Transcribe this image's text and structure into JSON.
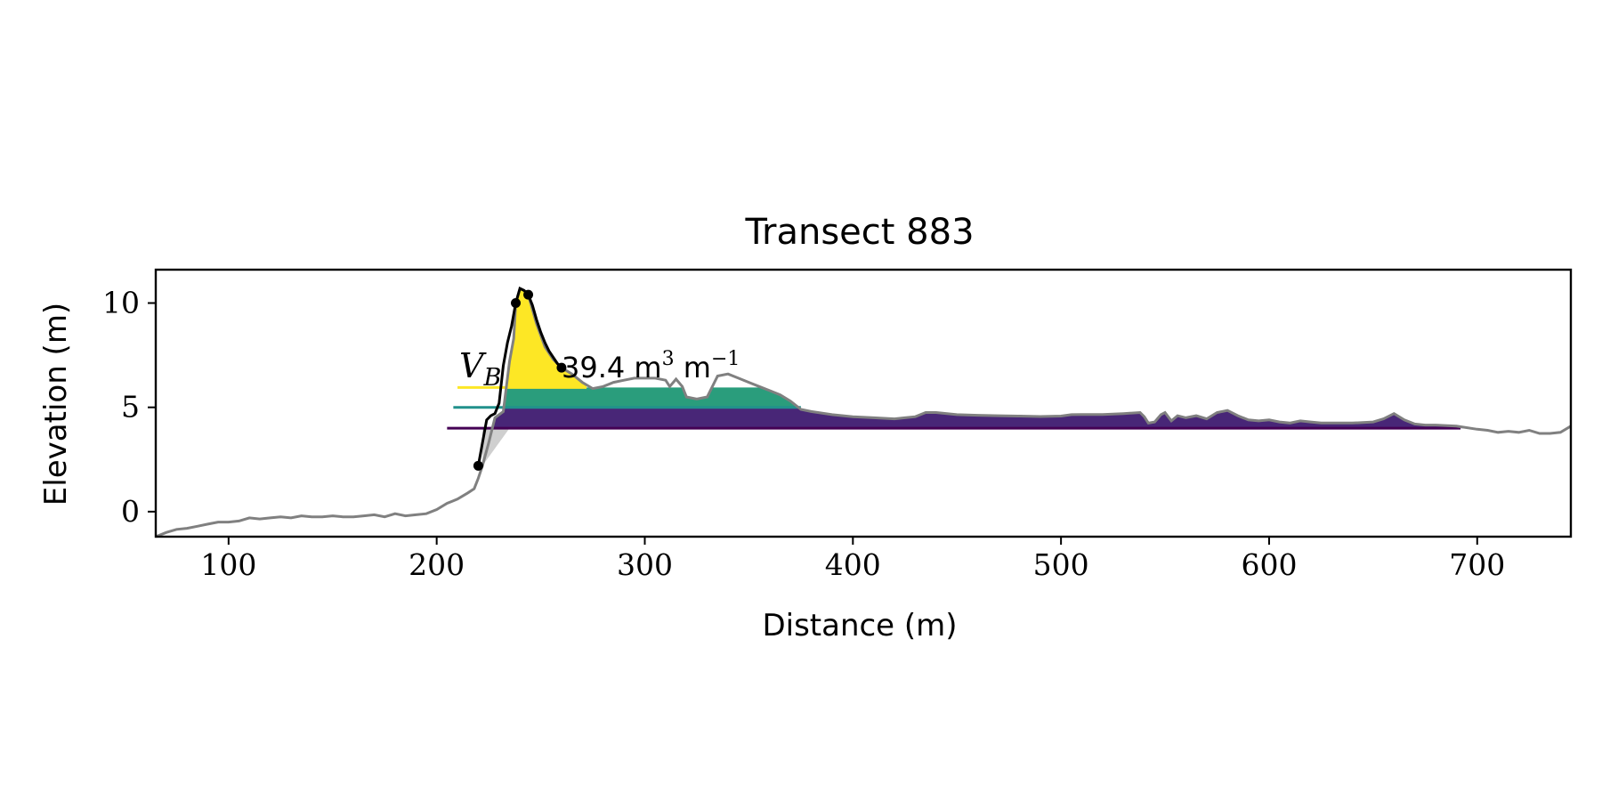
{
  "chart_data": {
    "type": "area",
    "title": "Transect 883",
    "xlabel": "Distance (m)",
    "ylabel": "Elevation (m)",
    "xlim": [
      65,
      745
    ],
    "ylim": [
      -1.2,
      11.6
    ],
    "xticks": [
      100,
      200,
      300,
      400,
      500,
      600,
      700
    ],
    "yticks": [
      0,
      5,
      10
    ],
    "grid": false,
    "annotation": {
      "symbol": "V",
      "subscript": "B",
      "value_text": "39.4 m",
      "unit_exp1": "3",
      "unit_tail": " m",
      "unit_exp2": "−1"
    },
    "levels": [
      {
        "elevation": 5.95,
        "x_start": 210,
        "color": "#fde725"
      },
      {
        "elevation": 5.0,
        "x_start": 208,
        "color": "#21918c"
      },
      {
        "elevation": 4.0,
        "x_start": 205,
        "color": "#440154"
      }
    ],
    "fill_colors": {
      "top": "#fde725",
      "mid": "#2a9d7c",
      "base": "#482677",
      "shadow": "#cfcfcf"
    },
    "profile": {
      "name": "ground",
      "color": "#808080",
      "x": [
        65,
        70,
        75,
        80,
        85,
        90,
        95,
        100,
        105,
        110,
        115,
        120,
        125,
        130,
        135,
        140,
        145,
        150,
        155,
        160,
        165,
        170,
        175,
        180,
        185,
        190,
        195,
        200,
        205,
        210,
        215,
        218,
        220,
        222,
        225,
        228,
        232,
        235,
        237,
        238,
        240,
        242,
        244,
        248,
        252,
        256,
        260,
        265,
        270,
        275,
        280,
        285,
        290,
        295,
        300,
        305,
        310,
        312,
        315,
        318,
        320,
        325,
        330,
        335,
        340,
        345,
        350,
        355,
        360,
        365,
        370,
        375,
        380,
        390,
        400,
        410,
        420,
        425,
        430,
        435,
        440,
        450,
        460,
        470,
        480,
        490,
        500,
        505,
        510,
        520,
        530,
        538,
        540,
        542,
        545,
        548,
        550,
        553,
        556,
        560,
        565,
        570,
        575,
        580,
        585,
        590,
        595,
        600,
        605,
        610,
        615,
        620,
        625,
        630,
        640,
        650,
        655,
        660,
        665,
        670,
        675,
        680,
        690,
        700,
        705,
        710,
        715,
        720,
        725,
        730,
        735,
        740,
        745
      ],
      "y": [
        -1.2,
        -1.0,
        -0.85,
        -0.8,
        -0.7,
        -0.6,
        -0.5,
        -0.5,
        -0.45,
        -0.3,
        -0.35,
        -0.3,
        -0.25,
        -0.3,
        -0.2,
        -0.25,
        -0.25,
        -0.2,
        -0.25,
        -0.25,
        -0.2,
        -0.15,
        -0.25,
        -0.1,
        -0.2,
        -0.15,
        -0.1,
        0.1,
        0.4,
        0.6,
        0.9,
        1.1,
        1.6,
        2.2,
        3.3,
        4.5,
        4.8,
        7.2,
        8.3,
        10.0,
        10.7,
        10.6,
        10.4,
        9.0,
        7.9,
        7.3,
        6.9,
        6.6,
        6.2,
        5.9,
        6.0,
        6.2,
        6.3,
        6.4,
        6.4,
        6.4,
        6.3,
        6.0,
        6.35,
        6.0,
        5.5,
        5.4,
        5.5,
        6.5,
        6.6,
        6.4,
        6.2,
        6.0,
        5.8,
        5.6,
        5.3,
        4.9,
        4.8,
        4.65,
        4.55,
        4.5,
        4.45,
        4.5,
        4.55,
        4.75,
        4.75,
        4.65,
        4.62,
        4.6,
        4.58,
        4.56,
        4.58,
        4.65,
        4.66,
        4.66,
        4.7,
        4.75,
        4.55,
        4.25,
        4.3,
        4.65,
        4.75,
        4.35,
        4.6,
        4.5,
        4.6,
        4.45,
        4.75,
        4.85,
        4.6,
        4.4,
        4.35,
        4.4,
        4.3,
        4.25,
        4.35,
        4.3,
        4.25,
        4.25,
        4.25,
        4.3,
        4.45,
        4.7,
        4.4,
        4.2,
        4.15,
        4.15,
        4.1,
        3.95,
        3.9,
        3.8,
        3.85,
        3.8,
        3.9,
        3.75,
        3.75,
        3.8,
        4.1
      ]
    },
    "dune_line": {
      "name": "dune",
      "color": "#000000",
      "x": [
        220,
        222,
        224,
        226,
        228,
        230,
        232,
        234,
        236,
        238,
        240,
        242,
        244,
        246,
        248,
        250,
        252,
        254,
        256,
        258,
        260
      ],
      "y": [
        2.2,
        3.3,
        4.4,
        4.6,
        4.7,
        5.2,
        7.0,
        8.1,
        8.9,
        10.0,
        10.7,
        10.6,
        10.4,
        9.9,
        9.2,
        8.6,
        8.1,
        7.7,
        7.4,
        7.1,
        6.9
      ]
    },
    "markers": [
      {
        "x": 220,
        "y": 2.2
      },
      {
        "x": 238,
        "y": 10.0
      },
      {
        "x": 244,
        "y": 10.4
      },
      {
        "x": 260,
        "y": 6.9
      }
    ]
  }
}
